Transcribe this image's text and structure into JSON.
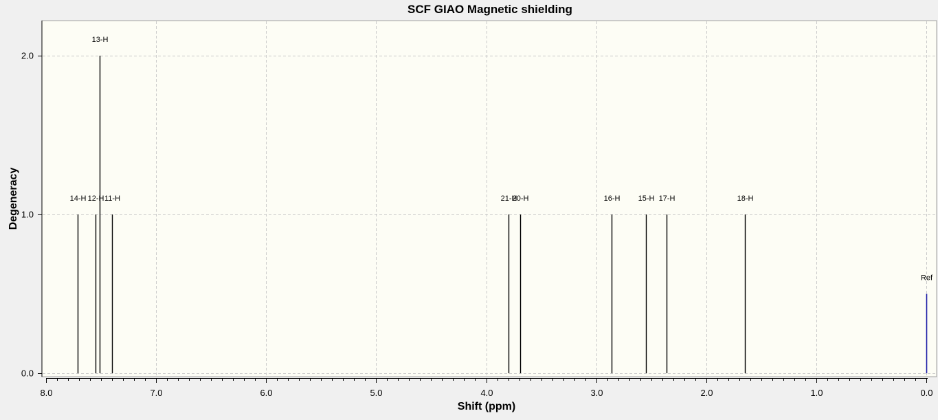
{
  "colors": {
    "background": "#f0f0f0",
    "plot_background": "#fdfdf5",
    "grid": "#c8c8c8",
    "peak": "#000000",
    "reference": "#1a1aa6",
    "text": "#000000"
  },
  "chart_data": {
    "type": "bar",
    "title": "SCF GIAO Magnetic shielding",
    "xlabel": "Shift (ppm)",
    "ylabel": "Degeneracy",
    "xlim": [
      8.0,
      0.0
    ],
    "x_reversed": true,
    "ylim": [
      0.0,
      2.0
    ],
    "x_ticks": [
      "8.0",
      "7.0",
      "6.0",
      "5.0",
      "4.0",
      "3.0",
      "2.0",
      "1.0",
      "0.0"
    ],
    "y_ticks": [
      "0.0",
      "1.0",
      "2.0"
    ],
    "grid": true,
    "peaks": [
      {
        "label": "14-H",
        "x": 7.71,
        "y": 1
      },
      {
        "label": "12-H",
        "x": 7.55,
        "y": 1
      },
      {
        "label": "13-H",
        "x": 7.51,
        "y": 2
      },
      {
        "label": "11-H",
        "x": 7.4,
        "y": 1
      },
      {
        "label": "21-H",
        "x": 3.8,
        "y": 1
      },
      {
        "label": "20-H",
        "x": 3.69,
        "y": 1
      },
      {
        "label": "16-H",
        "x": 2.86,
        "y": 1
      },
      {
        "label": "15-H",
        "x": 2.55,
        "y": 1
      },
      {
        "label": "17-H",
        "x": 2.36,
        "y": 1
      },
      {
        "label": "18-H",
        "x": 1.65,
        "y": 1
      }
    ],
    "reference": {
      "label": "Ref",
      "x": 0.0,
      "y": 0.5
    }
  }
}
